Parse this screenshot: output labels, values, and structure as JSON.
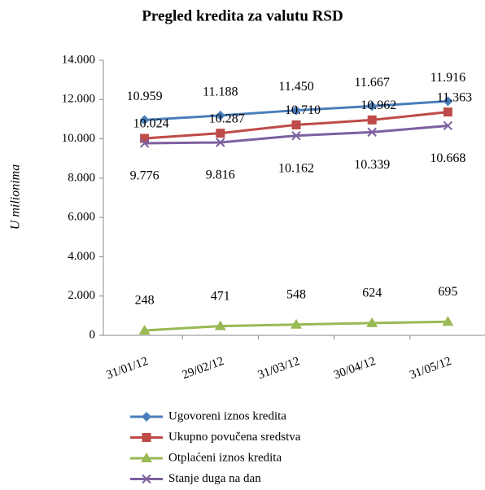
{
  "chart_data": {
    "type": "line",
    "title": "Pregled kredita za valutu RSD",
    "y_label": "U milionima",
    "categories": [
      "31/01/12",
      "29/02/12",
      "31/03/12",
      "30/04/12",
      "31/05/12"
    ],
    "series": [
      {
        "name": "Ugovoreni iznos kredita",
        "color": "#4a7ebb",
        "marker": "diamond",
        "values": [
          10959,
          11188,
          11450,
          11667,
          11916
        ],
        "value_labels": [
          "10.959",
          "11.188",
          "11.450",
          "11.667",
          "11.916"
        ]
      },
      {
        "name": "Ukupno povučena sredstva",
        "color": "#be4b48",
        "marker": "square",
        "values": [
          10024,
          10287,
          10710,
          10962,
          11363
        ],
        "value_labels": [
          "10.024",
          "10.287",
          "10.710",
          "10.962",
          "11.363"
        ]
      },
      {
        "name": "Otplaćeni iznos kredita",
        "color": "#98b954",
        "marker": "triangle",
        "values": [
          248,
          471,
          548,
          624,
          695
        ]
      },
      {
        "name": "Stanje duga na dan",
        "color": "#7d60a0",
        "marker": "x",
        "values": [
          9776,
          9816,
          10162,
          10339,
          10668
        ],
        "value_labels": [
          "9.776",
          "9.816",
          "10.162",
          "10.339",
          "10.668"
        ]
      }
    ],
    "ylim": [
      0,
      14000
    ],
    "yticks": [
      0,
      {
        "value": 2000,
        "label": "2.000"
      },
      {
        "value": 4000,
        "label": "4.000"
      },
      {
        "value": 6000,
        "label": "6.000"
      },
      {
        "value": 8000,
        "label": "8.000"
      },
      {
        "value": 10000,
        "label": "10.000"
      },
      {
        "value": 12000,
        "label": "12.000"
      },
      {
        "value": 14000,
        "label": "14.000"
      }
    ],
    "legend": "bottom"
  }
}
